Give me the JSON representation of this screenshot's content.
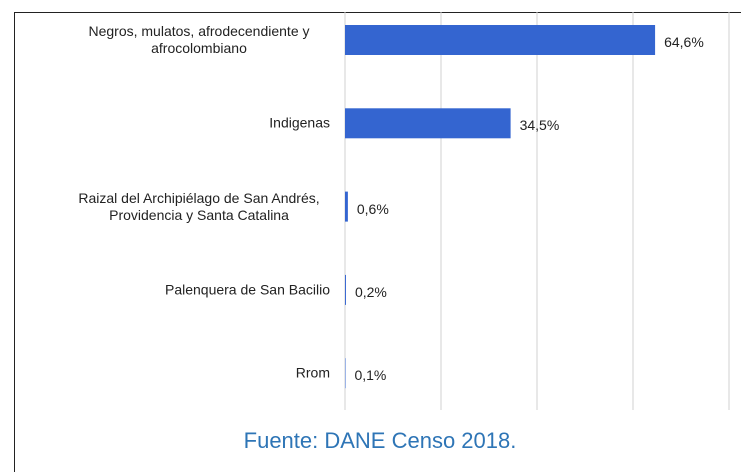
{
  "chart_data": {
    "type": "hbar",
    "categories": [
      "Negros, mulatos, afrodecendiente y afrocolombiano",
      "Indigenas",
      "Raizal del Archipiélago de San Andrés, Providencia y Santa Catalina",
      "Palenquera de San Bacilio",
      "Rrom"
    ],
    "values": [
      64.6,
      34.5,
      0.6,
      0.2,
      0.1
    ],
    "value_labels": [
      "64,6%",
      "34,5%",
      "0,6%",
      "0,2%",
      "0,1%"
    ],
    "color": "#3465d0",
    "xlim": [
      0,
      80
    ],
    "xticks": [
      0,
      20,
      40,
      60,
      80
    ],
    "grid": true,
    "source": "Fuente: DANE Censo 2018."
  }
}
